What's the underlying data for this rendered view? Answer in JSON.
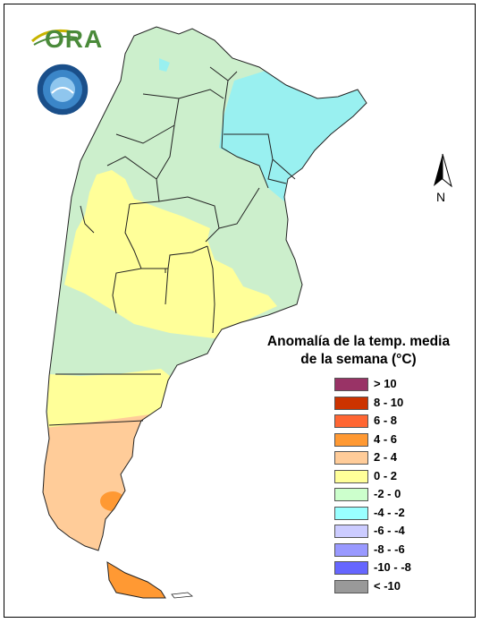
{
  "legend": {
    "title_line1": "Anomalía de la temp. media",
    "title_line2": "de la semana (°C)",
    "items": [
      {
        "label": "> 10",
        "color": "#993366"
      },
      {
        "label": "8 - 10",
        "color": "#cc3300"
      },
      {
        "label": "6 - 8",
        "color": "#ff6633"
      },
      {
        "label": "4 - 6",
        "color": "#ff9933"
      },
      {
        "label": "2 - 4",
        "color": "#ffcc99"
      },
      {
        "label": "0 - 2",
        "color": "#ffff99"
      },
      {
        "label": "-2 - 0",
        "color": "#ccffcc"
      },
      {
        "label": "-4 - -2",
        "color": "#99ffff"
      },
      {
        "label": "-6 - -4",
        "color": "#ccccff"
      },
      {
        "label": "-8 - -6",
        "color": "#9999ff"
      },
      {
        "label": "-10 - -8",
        "color": "#6666ff"
      },
      {
        "label": "< -10",
        "color": "#999999"
      }
    ]
  },
  "north_arrow": {
    "label": "N",
    "icon": "north-arrow-icon"
  },
  "logos": {
    "ora": "ORA",
    "smn": "smn-seal"
  },
  "colors": {
    "green": "#ccefcc",
    "cyan": "#99f0f0",
    "yellow": "#ffff99",
    "peach": "#ffcc99",
    "orange": "#ff9933",
    "boundary": "#222222"
  }
}
